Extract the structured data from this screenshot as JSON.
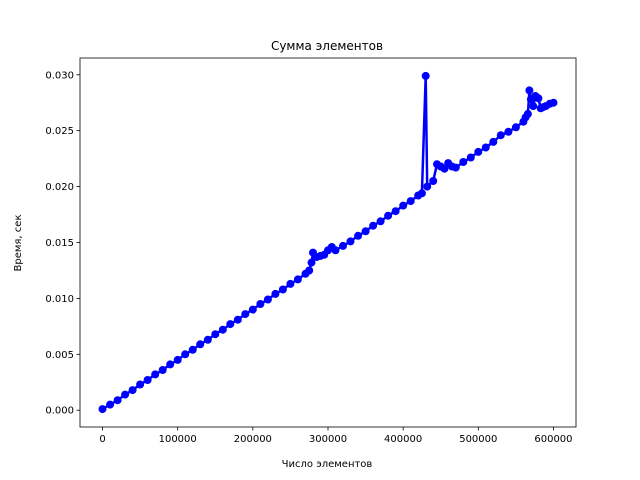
{
  "chart_data": {
    "type": "line",
    "title": "Сумма элементов",
    "xlabel": "Число элементов",
    "ylabel": "Время, сек",
    "xlim": [
      -30000,
      630000
    ],
    "ylim": [
      -0.0015,
      0.0315
    ],
    "grid": false,
    "color": "#0000ff",
    "marker": "circle",
    "xticks": [
      {
        "value": 0,
        "label": "0"
      },
      {
        "value": 100000,
        "label": "100000"
      },
      {
        "value": 200000,
        "label": "200000"
      },
      {
        "value": 300000,
        "label": "300000"
      },
      {
        "value": 400000,
        "label": "400000"
      },
      {
        "value": 500000,
        "label": "500000"
      },
      {
        "value": 600000,
        "label": "600000"
      }
    ],
    "yticks": [
      {
        "value": 0.0,
        "label": "0.000"
      },
      {
        "value": 0.005,
        "label": "0.005"
      },
      {
        "value": 0.01,
        "label": "0.010"
      },
      {
        "value": 0.015,
        "label": "0.015"
      },
      {
        "value": 0.02,
        "label": "0.020"
      },
      {
        "value": 0.025,
        "label": "0.025"
      },
      {
        "value": 0.03,
        "label": "0.030"
      }
    ],
    "series": [
      {
        "x": [
          0,
          10000,
          20000,
          30000,
          40000,
          50000,
          60000,
          70000,
          80000,
          90000,
          100000,
          110000,
          120000,
          130000,
          140000,
          150000,
          160000,
          170000,
          180000,
          190000,
          200000,
          210000,
          220000,
          230000,
          240000,
          250000,
          260000,
          270000,
          275000,
          278000,
          280000,
          285000,
          290000,
          295000,
          300000,
          305000,
          310000,
          320000,
          330000,
          340000,
          350000,
          360000,
          370000,
          380000,
          390000,
          400000,
          410000,
          420000,
          425000,
          430000,
          432000,
          440000,
          445000,
          450000,
          455000,
          460000,
          465000,
          470000,
          480000,
          490000,
          500000,
          510000,
          520000,
          530000,
          540000,
          550000,
          560000,
          563000,
          566000,
          568000,
          570000,
          573000,
          576000,
          580000,
          583000,
          586000,
          590000,
          595000,
          600000
        ],
        "y": [
          0.0001,
          0.0005,
          0.0009,
          0.0014,
          0.0018,
          0.0023,
          0.0027,
          0.0032,
          0.0036,
          0.0041,
          0.0045,
          0.005,
          0.0054,
          0.0059,
          0.0063,
          0.0068,
          0.0072,
          0.0077,
          0.0081,
          0.0086,
          0.009,
          0.0095,
          0.0099,
          0.0104,
          0.0108,
          0.0113,
          0.0117,
          0.0122,
          0.0125,
          0.0132,
          0.0141,
          0.0137,
          0.0138,
          0.0139,
          0.0143,
          0.0146,
          0.0143,
          0.0147,
          0.0151,
          0.0156,
          0.016,
          0.0165,
          0.0169,
          0.0174,
          0.0178,
          0.0183,
          0.0187,
          0.0192,
          0.0194,
          0.0299,
          0.02,
          0.0205,
          0.022,
          0.0218,
          0.0216,
          0.0221,
          0.0218,
          0.0217,
          0.0222,
          0.0226,
          0.0231,
          0.0235,
          0.024,
          0.0246,
          0.0249,
          0.0253,
          0.0258,
          0.0262,
          0.0265,
          0.0286,
          0.0278,
          0.0272,
          0.0281,
          0.0279,
          0.027,
          0.0271,
          0.0272,
          0.0274,
          0.0275
        ]
      }
    ]
  }
}
